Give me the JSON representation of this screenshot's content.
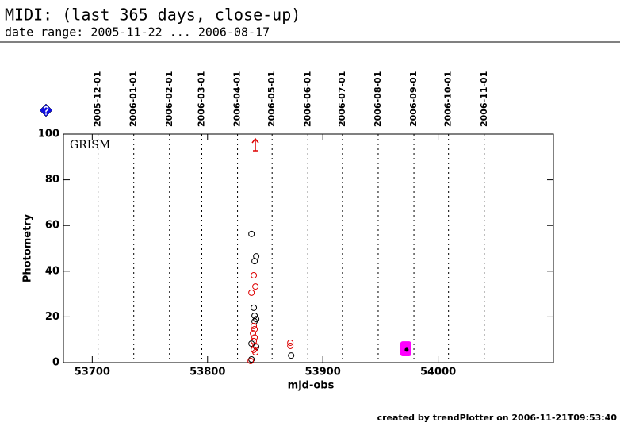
{
  "chart_data": {
    "type": "scatter",
    "title": "MIDI: (last 365 days, close-up)",
    "subtitle": "date range: 2005-11-22 ... 2006-08-17",
    "x_label": "mjd-obs",
    "y_label": "Photometry",
    "annotation": "GRISM",
    "footer": "created by trendPlotter on 2006-11-21T09:53:40",
    "xlim": [
      53675,
      54100
    ],
    "ylim": [
      0,
      100
    ],
    "xticks": [
      53700,
      53800,
      53900,
      54000
    ],
    "yticks": [
      0,
      20,
      40,
      60,
      80,
      100
    ],
    "date_markers": [
      {
        "value": 53705,
        "label": "2005-12-01"
      },
      {
        "value": 53736,
        "label": "2006-01-01"
      },
      {
        "value": 53767,
        "label": "2006-02-01"
      },
      {
        "value": 53795,
        "label": "2006-03-01"
      },
      {
        "value": 53826,
        "label": "2006-04-01"
      },
      {
        "value": 53856,
        "label": "2006-05-01"
      },
      {
        "value": 53887,
        "label": "2006-06-01"
      },
      {
        "value": 53917,
        "label": "2006-07-01"
      },
      {
        "value": 53948,
        "label": "2006-08-01"
      },
      {
        "value": 53979,
        "label": "2006-09-01"
      },
      {
        "value": 54009,
        "label": "2006-10-01"
      },
      {
        "value": 54040,
        "label": "2006-11-01"
      }
    ],
    "series": [
      {
        "color": "#000000",
        "marker": "circle",
        "x": [
          53838.1,
          53842.2,
          53840.8,
          53840.1,
          53840.8,
          53842.2,
          53840.8,
          53838.1,
          53842.2,
          53838.1,
          53872.5
        ],
        "values": [
          56.3,
          46.5,
          44.4,
          24,
          20.5,
          19,
          18,
          8.3,
          6.9,
          1.4,
          3.1
        ]
      },
      {
        "color": "#dd0000",
        "marker": "circle",
        "x": [
          53840.1,
          53841.5,
          53838.1,
          53840.1,
          53840.8,
          53839.4,
          53840.8,
          53840.1,
          53841.5,
          53840.1,
          53841.5,
          53837.4,
          53871.8,
          53871.8
        ],
        "values": [
          38.2,
          33.3,
          30.6,
          16,
          14.6,
          12.8,
          11,
          9.4,
          7.3,
          5.6,
          4.5,
          0.7,
          8.7,
          7.3
        ]
      },
      {
        "color": "#ff00ff",
        "marker": "square",
        "x": [
          53972,
          53972
        ],
        "values": [
          6.9,
          5.2
        ]
      },
      {
        "color": "#000000",
        "marker": "dot",
        "x": [
          53972.7
        ],
        "values": [
          5.6
        ]
      }
    ]
  }
}
